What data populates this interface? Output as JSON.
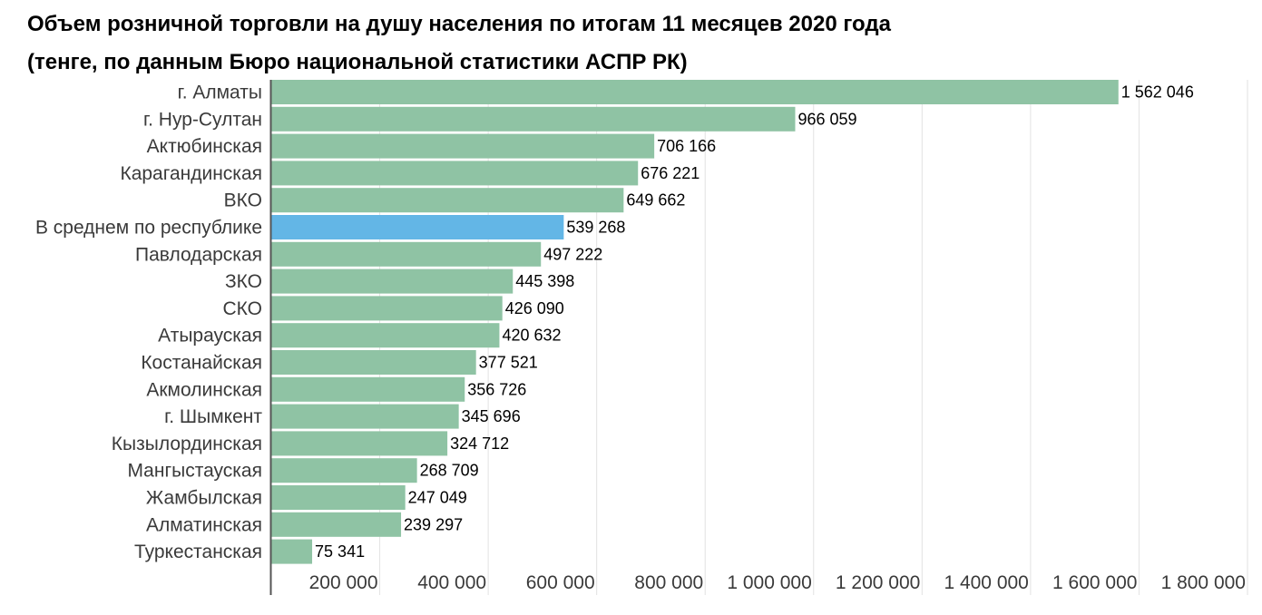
{
  "chart_data": {
    "type": "bar",
    "orientation": "horizontal",
    "title": "Объем розничной торговли на душу населения по итогам 11 месяцев 2020 года",
    "subtitle": "(тенге, по данным Бюро национальной статистики АСПР РК)",
    "categories": [
      "г. Алматы",
      "г. Нур-Султан",
      "Актюбинская",
      "Карагандинская",
      "ВКО",
      "В среднем по республике",
      "Павлодарская",
      "ЗКО",
      "СКО",
      "Атырауская",
      "Костанайская",
      "Акмолинская",
      "г. Шымкент",
      "Кызылординская",
      "Мангыстауская",
      "Жамбылская",
      "Алматинская",
      "Туркестанская"
    ],
    "values": [
      1562046,
      966059,
      706166,
      676221,
      649662,
      539268,
      497222,
      445398,
      426090,
      420632,
      377521,
      356726,
      345696,
      324712,
      268709,
      247049,
      239297,
      75341
    ],
    "value_labels": [
      "1 562 046",
      "966 059",
      "706 166",
      "676 221",
      "649 662",
      "539 268",
      "497 222",
      "445 398",
      "426 090",
      "420 632",
      "377 521",
      "356 726",
      "345 696",
      "324 712",
      "268 709",
      "247 049",
      "239 297",
      "75 341"
    ],
    "highlight_category": "В среднем по республике",
    "xlim": [
      0,
      1800000
    ],
    "x_ticks": [
      200000,
      400000,
      600000,
      800000,
      1000000,
      1200000,
      1400000,
      1600000,
      1800000
    ],
    "x_tick_labels": [
      "200 000",
      "400 000",
      "600 000",
      "800 000",
      "1 000 000",
      "1 200 000",
      "1 400 000",
      "1 600 000",
      "1 800 000"
    ],
    "grid": true,
    "legend": "none",
    "colors": {
      "bar": "#8fc3a4",
      "highlight": "#63b6e6",
      "grid": "#e2e2e2",
      "axis": "#555555"
    }
  }
}
